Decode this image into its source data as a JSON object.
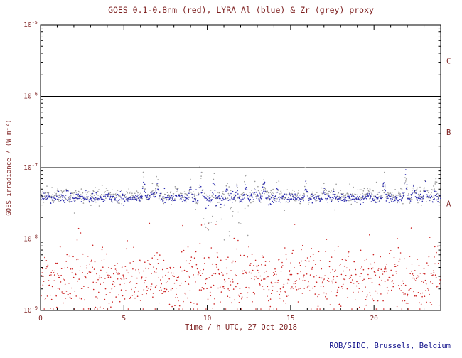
{
  "chart_data": {
    "type": "scatter",
    "title": "GOES 0.1-0.8nm (red), LYRA Al (blue) & Zr (grey) proxy",
    "xlabel": "Time / h UTC, 27 Oct 2018",
    "ylabel": "GOES irradiance / (W m⁻²)",
    "credit": "ROB/SIDC, Brussels, Belgium",
    "x_range": [
      0,
      24
    ],
    "x_major_ticks": [
      0,
      5,
      10,
      15,
      20
    ],
    "x_minor_step": 1,
    "y_log_range": [
      -9,
      -5
    ],
    "y_tick_exponents": [
      -5,
      -6,
      -7,
      -8,
      -9
    ],
    "hlines_exp": [
      -6,
      -7,
      -8
    ],
    "class_bands": [
      {
        "label": "C",
        "exp_top": -5,
        "exp_bottom": -6
      },
      {
        "label": "B",
        "exp_top": -6,
        "exp_bottom": -7
      },
      {
        "label": "A",
        "exp_top": -7,
        "exp_bottom": -8
      }
    ],
    "grid": false,
    "legend_position": "in-title",
    "marker_radius": 0.8,
    "seed": 1337,
    "colors": {
      "text": "#7d1f1f",
      "credit": "#14148c",
      "frame": "#000000",
      "goes_red": "#cc2222",
      "lyra_zr_grey": "#999999",
      "lyra_al_blue": "#2a2aae"
    },
    "series": [
      {
        "name": "GOES 0.1-0.8nm",
        "color": "#cc2222",
        "n": 900,
        "base_log": -8.58,
        "sigma": 0.2,
        "tail_sigma": 0.42,
        "tail_frac": 0.12,
        "clip": [
          -8.98,
          -7.78
        ],
        "spike_scale": 0,
        "spikes": []
      },
      {
        "name": "LYRA Zr proxy",
        "color": "#999999",
        "n": 800,
        "base_log": -7.4,
        "sigma": 0.05,
        "tail_sigma": 0.09,
        "tail_frac": 0.1,
        "clip": [
          -8.2,
          -6.85
        ],
        "spike_scale": 1.15,
        "dip": {
          "range": [
            9.7,
            12.5
          ],
          "depth": 0.58,
          "frac": 0.38
        },
        "spikes": [
          {
            "t": 1.6,
            "a": 0.1
          },
          {
            "t": 4.0,
            "a": 0.08
          },
          {
            "t": 6.2,
            "a": 0.3
          },
          {
            "t": 6.7,
            "a": 0.15
          },
          {
            "t": 7.0,
            "a": 0.26
          },
          {
            "t": 8.2,
            "a": 0.12
          },
          {
            "t": 9.0,
            "a": 0.15
          },
          {
            "t": 9.6,
            "a": 0.5
          },
          {
            "t": 10.4,
            "a": 0.25
          },
          {
            "t": 11.2,
            "a": 0.22
          },
          {
            "t": 11.8,
            "a": 0.18
          },
          {
            "t": 12.3,
            "a": 0.28
          },
          {
            "t": 12.9,
            "a": 0.18
          },
          {
            "t": 13.4,
            "a": 0.24
          },
          {
            "t": 14.2,
            "a": 0.12
          },
          {
            "t": 15.9,
            "a": 0.24
          },
          {
            "t": 17.0,
            "a": 0.12
          },
          {
            "t": 17.6,
            "a": 0.1
          },
          {
            "t": 19.7,
            "a": 0.1
          },
          {
            "t": 20.6,
            "a": 0.24
          },
          {
            "t": 21.9,
            "a": 0.38
          },
          {
            "t": 22.4,
            "a": 0.2
          },
          {
            "t": 23.1,
            "a": 0.24
          },
          {
            "t": 23.7,
            "a": 0.14
          }
        ]
      },
      {
        "name": "LYRA Al proxy",
        "color": "#2a2aae",
        "n": 800,
        "base_log": -7.43,
        "sigma": 0.028,
        "tail_sigma": 0.05,
        "tail_frac": 0.08,
        "clip": [
          -8.0,
          -6.9
        ],
        "spike_scale": 1.0,
        "dip": {
          "range": [
            9.8,
            12.0
          ],
          "depth": 0.1,
          "frac": 0.25
        },
        "spikes": [
          {
            "t": 1.6,
            "a": 0.1
          },
          {
            "t": 4.0,
            "a": 0.08
          },
          {
            "t": 6.2,
            "a": 0.3
          },
          {
            "t": 6.7,
            "a": 0.15
          },
          {
            "t": 7.0,
            "a": 0.26
          },
          {
            "t": 8.2,
            "a": 0.12
          },
          {
            "t": 9.0,
            "a": 0.15
          },
          {
            "t": 9.6,
            "a": 0.5
          },
          {
            "t": 10.4,
            "a": 0.25
          },
          {
            "t": 11.2,
            "a": 0.22
          },
          {
            "t": 11.8,
            "a": 0.18
          },
          {
            "t": 12.3,
            "a": 0.28
          },
          {
            "t": 12.9,
            "a": 0.18
          },
          {
            "t": 13.4,
            "a": 0.24
          },
          {
            "t": 14.2,
            "a": 0.12
          },
          {
            "t": 15.9,
            "a": 0.24
          },
          {
            "t": 17.0,
            "a": 0.12
          },
          {
            "t": 17.6,
            "a": 0.1
          },
          {
            "t": 19.7,
            "a": 0.1
          },
          {
            "t": 20.6,
            "a": 0.24
          },
          {
            "t": 21.9,
            "a": 0.38
          },
          {
            "t": 22.4,
            "a": 0.2
          },
          {
            "t": 23.1,
            "a": 0.24
          },
          {
            "t": 23.7,
            "a": 0.14
          }
        ]
      }
    ]
  }
}
